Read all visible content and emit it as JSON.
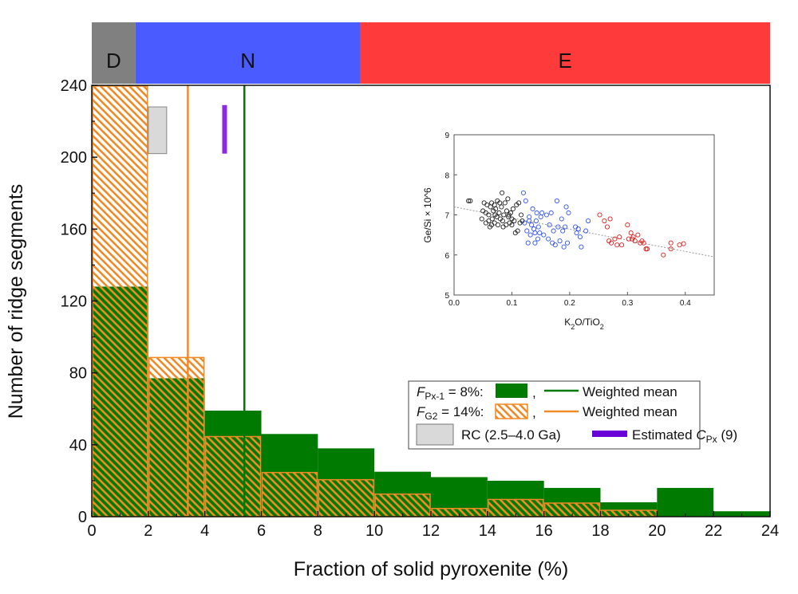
{
  "chart_data": [
    {
      "type": "bar",
      "xlabel": "Fraction of solid pyroxenite (%)",
      "ylabel": "Number of ridge segments",
      "xlim": [
        0,
        24
      ],
      "ylim": [
        0,
        240
      ],
      "xticks": [
        0,
        2,
        4,
        6,
        8,
        10,
        12,
        14,
        16,
        18,
        20,
        22,
        24
      ],
      "yticks": [
        0,
        40,
        80,
        120,
        160,
        200,
        240
      ],
      "bin_edges": [
        0,
        2,
        4,
        6,
        8,
        10,
        12,
        14,
        16,
        18,
        20,
        22,
        24
      ],
      "series": [
        {
          "key": "px",
          "legend_prefix": "F",
          "legend_sub": "Px-1",
          "legend_suffix": " = 8%:",
          "style": "solid",
          "color": "#007a00",
          "values": [
            128,
            77,
            59,
            46,
            38,
            25,
            22,
            20,
            16,
            8,
            16,
            3
          ]
        },
        {
          "key": "g2",
          "legend_prefix": "F",
          "legend_sub": "G2",
          "legend_suffix": " = 14%:",
          "style": "hatched",
          "color": "#f08a24",
          "values": [
            240,
            89,
            45,
            25,
            21,
            13,
            5,
            10,
            8,
            4,
            0,
            0
          ]
        }
      ],
      "weighted_means": [
        {
          "series": "px",
          "value": 5.4,
          "color": "#007a00",
          "label": "Weighted mean"
        },
        {
          "series": "g2",
          "value": 3.4,
          "color": "#f08a24",
          "label": "Weighted mean"
        }
      ],
      "rc_box": {
        "x_range": [
          2.0,
          2.65
        ],
        "y_range": [
          202,
          228
        ],
        "color": "#d9d9d9",
        "label": "RC  (2.5–4.0 Ga)"
      },
      "estimated_cpx": {
        "x": 4.7,
        "y_range": [
          202,
          229
        ],
        "color": "#8a2be2",
        "legend_color": "#6a00d8",
        "label_prefix": "Estimated ",
        "label_var": "C",
        "label_sub": "Px",
        "label_suffix": " (9)"
      },
      "regimes": [
        {
          "label": "D",
          "x_range": [
            0,
            1.55
          ],
          "color": "#808080"
        },
        {
          "label": "N",
          "x_range": [
            1.55,
            9.5
          ],
          "color": "#4a5cff"
        },
        {
          "label": "E",
          "x_range": [
            9.5,
            24
          ],
          "color": "#ff3a3a"
        }
      ],
      "grid": false,
      "legend_placement": "bottom-right"
    },
    {
      "type": "scatter",
      "xlabel": "K2O/TiO2",
      "ylabel": "Ge/Si × 10^6",
      "xlim": [
        0,
        0.45
      ],
      "ylim": [
        5,
        9
      ],
      "xticks": [
        "0.0",
        "0.1",
        "0.2",
        "0.3",
        "0.4"
      ],
      "yticks": [
        "5",
        "6",
        "7",
        "8",
        "9"
      ],
      "trendline": {
        "from": [
          0,
          7.2
        ],
        "to": [
          0.45,
          5.95
        ],
        "style": "dotted",
        "color": "#999999"
      },
      "series": [
        {
          "color": "#222222",
          "points": [
            [
              0.025,
              7.35
            ],
            [
              0.028,
              7.35
            ],
            [
              0.048,
              6.9
            ],
            [
              0.05,
              7.1
            ],
            [
              0.052,
              7.3
            ],
            [
              0.055,
              6.8
            ],
            [
              0.057,
              7.25
            ],
            [
              0.06,
              7.0
            ],
            [
              0.062,
              6.7
            ],
            [
              0.063,
              7.2
            ],
            [
              0.065,
              7.3
            ],
            [
              0.066,
              6.9
            ],
            [
              0.068,
              7.1
            ],
            [
              0.07,
              6.8
            ],
            [
              0.071,
              7.0
            ],
            [
              0.072,
              7.15
            ],
            [
              0.074,
              6.95
            ],
            [
              0.075,
              7.35
            ],
            [
              0.076,
              6.75
            ],
            [
              0.078,
              7.05
            ],
            [
              0.079,
              7.3
            ],
            [
              0.08,
              6.9
            ],
            [
              0.082,
              7.2
            ],
            [
              0.083,
              7.55
            ],
            [
              0.084,
              6.85
            ],
            [
              0.086,
              7.0
            ],
            [
              0.088,
              7.3
            ],
            [
              0.09,
              6.75
            ],
            [
              0.091,
              7.1
            ],
            [
              0.093,
              7.4
            ],
            [
              0.094,
              6.95
            ],
            [
              0.096,
              6.8
            ],
            [
              0.098,
              7.05
            ],
            [
              0.1,
              6.75
            ],
            [
              0.102,
              7.15
            ],
            [
              0.104,
              6.85
            ],
            [
              0.106,
              6.55
            ],
            [
              0.108,
              7.25
            ],
            [
              0.11,
              6.6
            ],
            [
              0.112,
              7.3
            ],
            [
              0.114,
              6.8
            ],
            [
              0.116,
              7.0
            ],
            [
              0.118,
              6.85
            ],
            [
              0.06,
              6.85
            ],
            [
              0.07,
              7.25
            ],
            [
              0.085,
              6.7
            ],
            [
              0.095,
              7.0
            ],
            [
              0.055,
              7.05
            ],
            [
              0.065,
              6.75
            ],
            [
              0.1,
              6.9
            ]
          ]
        },
        {
          "color": "#3355ee",
          "points": [
            [
              0.12,
              7.55
            ],
            [
              0.122,
              6.8
            ],
            [
              0.124,
              7.35
            ],
            [
              0.126,
              6.6
            ],
            [
              0.128,
              6.3
            ],
            [
              0.13,
              6.95
            ],
            [
              0.132,
              6.5
            ],
            [
              0.134,
              6.75
            ],
            [
              0.136,
              7.15
            ],
            [
              0.138,
              6.65
            ],
            [
              0.14,
              6.3
            ],
            [
              0.142,
              6.85
            ],
            [
              0.143,
              7.05
            ],
            [
              0.145,
              6.4
            ],
            [
              0.146,
              6.7
            ],
            [
              0.148,
              6.55
            ],
            [
              0.15,
              6.95
            ],
            [
              0.152,
              7.05
            ],
            [
              0.155,
              6.5
            ],
            [
              0.16,
              7.0
            ],
            [
              0.163,
              6.4
            ],
            [
              0.165,
              6.75
            ],
            [
              0.168,
              7.05
            ],
            [
              0.17,
              6.3
            ],
            [
              0.172,
              6.6
            ],
            [
              0.175,
              6.25
            ],
            [
              0.178,
              7.35
            ],
            [
              0.18,
              6.7
            ],
            [
              0.183,
              6.35
            ],
            [
              0.186,
              6.9
            ],
            [
              0.188,
              6.6
            ],
            [
              0.19,
              6.2
            ],
            [
              0.192,
              6.7
            ],
            [
              0.194,
              7.2
            ],
            [
              0.196,
              6.3
            ],
            [
              0.198,
              7.05
            ],
            [
              0.21,
              6.7
            ],
            [
              0.212,
              6.55
            ],
            [
              0.215,
              6.65
            ],
            [
              0.218,
              6.45
            ],
            [
              0.22,
              6.2
            ],
            [
              0.228,
              6.6
            ],
            [
              0.232,
              6.85
            ],
            [
              0.14,
              6.55
            ],
            [
              0.13,
              6.85
            ]
          ]
        },
        {
          "color": "#e02020",
          "points": [
            [
              0.252,
              7.0
            ],
            [
              0.26,
              6.85
            ],
            [
              0.265,
              6.7
            ],
            [
              0.27,
              6.9
            ],
            [
              0.268,
              6.35
            ],
            [
              0.272,
              6.3
            ],
            [
              0.278,
              6.4
            ],
            [
              0.282,
              6.25
            ],
            [
              0.286,
              6.45
            ],
            [
              0.29,
              6.25
            ],
            [
              0.3,
              6.75
            ],
            [
              0.302,
              6.4
            ],
            [
              0.306,
              6.55
            ],
            [
              0.308,
              6.4
            ],
            [
              0.31,
              6.45
            ],
            [
              0.313,
              6.35
            ],
            [
              0.318,
              6.5
            ],
            [
              0.322,
              6.3
            ],
            [
              0.325,
              6.35
            ],
            [
              0.328,
              6.3
            ],
            [
              0.332,
              6.15
            ],
            [
              0.334,
              6.15
            ],
            [
              0.362,
              6.0
            ],
            [
              0.375,
              6.3
            ],
            [
              0.375,
              6.15
            ],
            [
              0.39,
              6.25
            ],
            [
              0.397,
              6.28
            ]
          ]
        }
      ],
      "grid": false
    }
  ]
}
